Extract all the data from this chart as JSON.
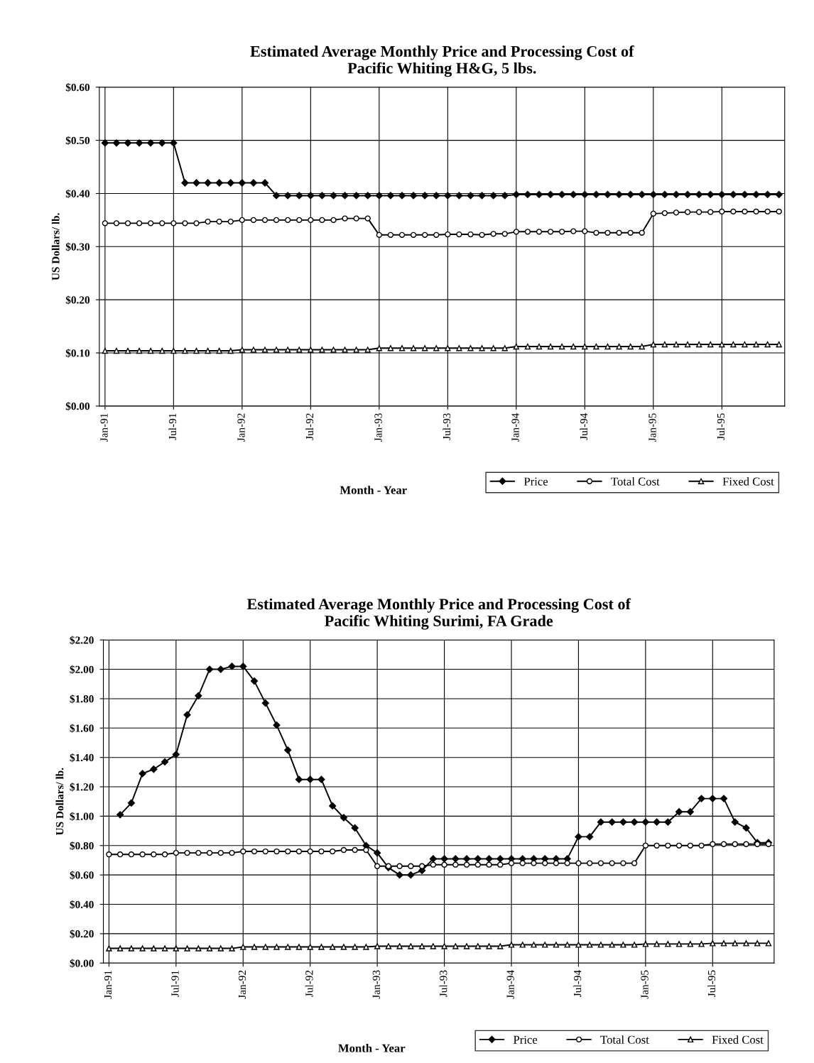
{
  "chart_data": [
    {
      "type": "line",
      "title": "Estimated Average Monthly Price and Processing Cost of\nPacific Whiting H&G, 5 lbs.",
      "xlabel": "Month - Year",
      "ylabel": "US Dollars/ lb.",
      "categories": [
        "Jan-91",
        null,
        null,
        null,
        null,
        null,
        "Jul-91",
        null,
        null,
        null,
        null,
        null,
        "Jan-92",
        null,
        null,
        null,
        null,
        null,
        "Jul-92",
        null,
        null,
        null,
        null,
        null,
        "Jan-93",
        null,
        null,
        null,
        null,
        null,
        "Jul-93",
        null,
        null,
        null,
        null,
        null,
        "Jan-94",
        null,
        null,
        null,
        null,
        null,
        "Jul-94",
        null,
        null,
        null,
        null,
        null,
        "Jan-95",
        null,
        null,
        null,
        null,
        null,
        "Jul-95",
        null,
        null,
        null,
        null,
        null
      ],
      "series": [
        {
          "name": "Price",
          "color": "#000000",
          "marker": "diamond",
          "values": [
            0.495,
            0.495,
            0.495,
            0.495,
            0.495,
            0.495,
            0.495,
            0.42,
            0.42,
            0.42,
            0.42,
            0.42,
            0.42,
            0.42,
            0.42,
            0.396,
            0.396,
            0.396,
            0.396,
            0.396,
            0.396,
            0.396,
            0.396,
            0.396,
            0.396,
            0.396,
            0.396,
            0.396,
            0.396,
            0.396,
            0.396,
            0.396,
            0.396,
            0.396,
            0.396,
            0.396,
            0.398,
            0.398,
            0.398,
            0.398,
            0.398,
            0.398,
            0.398,
            0.398,
            0.398,
            0.398,
            0.398,
            0.398,
            0.398,
            0.398,
            0.398,
            0.398,
            0.398,
            0.398,
            0.398,
            0.398,
            0.398,
            0.398,
            0.398,
            0.398
          ]
        },
        {
          "name": "Total Cost",
          "color": "#000000",
          "marker": "circle",
          "values": [
            0.344,
            0.344,
            0.344,
            0.344,
            0.344,
            0.344,
            0.344,
            0.344,
            0.344,
            0.347,
            0.347,
            0.347,
            0.35,
            0.35,
            0.35,
            0.35,
            0.35,
            0.35,
            0.35,
            0.35,
            0.35,
            0.353,
            0.353,
            0.353,
            0.322,
            0.322,
            0.322,
            0.322,
            0.322,
            0.322,
            0.323,
            0.323,
            0.323,
            0.322,
            0.324,
            0.324,
            0.328,
            0.328,
            0.328,
            0.328,
            0.328,
            0.329,
            0.329,
            0.326,
            0.326,
            0.326,
            0.326,
            0.326,
            0.362,
            0.363,
            0.364,
            0.365,
            0.365,
            0.365,
            0.366,
            0.366,
            0.366,
            0.366,
            0.366,
            0.366
          ]
        },
        {
          "name": "Fixed Cost",
          "color": "#000000",
          "marker": "triangle",
          "values": [
            0.104,
            0.104,
            0.104,
            0.104,
            0.104,
            0.104,
            0.104,
            0.104,
            0.104,
            0.104,
            0.104,
            0.104,
            0.106,
            0.106,
            0.106,
            0.106,
            0.106,
            0.106,
            0.106,
            0.106,
            0.106,
            0.106,
            0.106,
            0.106,
            0.109,
            0.109,
            0.109,
            0.109,
            0.109,
            0.109,
            0.109,
            0.109,
            0.109,
            0.109,
            0.109,
            0.109,
            0.112,
            0.112,
            0.112,
            0.112,
            0.112,
            0.112,
            0.112,
            0.112,
            0.112,
            0.112,
            0.112,
            0.112,
            0.116,
            0.116,
            0.116,
            0.116,
            0.116,
            0.116,
            0.116,
            0.116,
            0.116,
            0.116,
            0.116,
            0.116
          ]
        }
      ],
      "ylim": [
        0,
        0.6
      ],
      "yticks": [
        {
          "value": 0,
          "label": "$0.00"
        },
        {
          "value": 0.1,
          "label": "$0.10"
        },
        {
          "value": 0.2,
          "label": "$0.20"
        },
        {
          "value": 0.3,
          "label": "$0.30"
        },
        {
          "value": 0.4,
          "label": "$0.40"
        },
        {
          "value": 0.5,
          "label": "$0.50"
        },
        {
          "value": 0.6,
          "label": "$0.60"
        }
      ],
      "grid": true,
      "legend": "bottom right",
      "line_style": "solid"
    },
    {
      "type": "line",
      "title": "Estimated Average Monthly Price and Processing Cost of\nPacific Whiting Surimi, FA Grade",
      "xlabel": "Month - Year",
      "ylabel": "US Dollars/ lb.",
      "categories": [
        "Jan-91",
        null,
        null,
        null,
        null,
        null,
        "Jul-91",
        null,
        null,
        null,
        null,
        null,
        "Jan-92",
        null,
        null,
        null,
        null,
        null,
        "Jul-92",
        null,
        null,
        null,
        null,
        null,
        "Jan-93",
        null,
        null,
        null,
        null,
        null,
        "Jul-93",
        null,
        null,
        null,
        null,
        null,
        "Jan-94",
        null,
        null,
        null,
        null,
        null,
        "Jul-94",
        null,
        null,
        null,
        null,
        null,
        "Jan-95",
        null,
        null,
        null,
        null,
        null,
        "Jul-95",
        null,
        null,
        null,
        null,
        null
      ],
      "series": [
        {
          "name": "Price",
          "color": "#000000",
          "marker": "diamond",
          "values": [
            null,
            1.01,
            1.09,
            1.29,
            1.32,
            1.37,
            1.42,
            1.69,
            1.82,
            2.0,
            2.0,
            2.02,
            2.02,
            1.92,
            1.77,
            1.62,
            1.45,
            1.25,
            1.25,
            1.25,
            1.07,
            0.99,
            0.92,
            0.8,
            0.75,
            0.65,
            0.6,
            0.6,
            0.63,
            0.71,
            0.71,
            0.71,
            0.71,
            0.71,
            0.71,
            0.71,
            0.71,
            0.71,
            0.71,
            0.71,
            0.71,
            0.71,
            0.86,
            0.86,
            0.96,
            0.96,
            0.96,
            0.96,
            0.96,
            0.96,
            0.96,
            1.03,
            1.03,
            1.12,
            1.12,
            1.12,
            0.96,
            0.92,
            0.82,
            0.82
          ]
        },
        {
          "name": "Total Cost",
          "color": "#000000",
          "marker": "circle",
          "values": [
            0.74,
            0.74,
            0.74,
            0.74,
            0.74,
            0.74,
            0.75,
            0.75,
            0.75,
            0.75,
            0.75,
            0.75,
            0.76,
            0.76,
            0.76,
            0.76,
            0.76,
            0.76,
            0.76,
            0.76,
            0.76,
            0.77,
            0.77,
            0.77,
            0.66,
            0.66,
            0.66,
            0.66,
            0.66,
            0.67,
            0.67,
            0.67,
            0.67,
            0.67,
            0.67,
            0.67,
            0.68,
            0.68,
            0.68,
            0.68,
            0.68,
            0.68,
            0.68,
            0.68,
            0.68,
            0.68,
            0.68,
            0.68,
            0.8,
            0.8,
            0.8,
            0.8,
            0.8,
            0.8,
            0.81,
            0.81,
            0.81,
            0.81,
            0.81,
            0.81
          ]
        },
        {
          "name": "Fixed Cost",
          "color": "#000000",
          "marker": "triangle",
          "values": [
            0.1,
            0.1,
            0.1,
            0.1,
            0.1,
            0.1,
            0.1,
            0.1,
            0.1,
            0.1,
            0.1,
            0.1,
            0.11,
            0.11,
            0.11,
            0.11,
            0.11,
            0.11,
            0.11,
            0.11,
            0.11,
            0.11,
            0.11,
            0.11,
            0.115,
            0.115,
            0.115,
            0.115,
            0.115,
            0.115,
            0.115,
            0.115,
            0.115,
            0.115,
            0.115,
            0.115,
            0.125,
            0.125,
            0.125,
            0.125,
            0.125,
            0.125,
            0.125,
            0.125,
            0.125,
            0.125,
            0.125,
            0.125,
            0.13,
            0.13,
            0.13,
            0.13,
            0.13,
            0.13,
            0.135,
            0.135,
            0.135,
            0.135,
            0.135,
            0.135
          ]
        }
      ],
      "ylim": [
        0,
        2.2
      ],
      "yticks": [
        {
          "value": 0,
          "label": "$0.00"
        },
        {
          "value": 0.2,
          "label": "$0.20"
        },
        {
          "value": 0.4,
          "label": "$0.40"
        },
        {
          "value": 0.6,
          "label": "$0.60"
        },
        {
          "value": 0.8,
          "label": "$0.80"
        },
        {
          "value": 1.0,
          "label": "$1.00"
        },
        {
          "value": 1.2,
          "label": "$1.20"
        },
        {
          "value": 1.4,
          "label": "$1.40"
        },
        {
          "value": 1.6,
          "label": "$1.60"
        },
        {
          "value": 1.8,
          "label": "$1.80"
        },
        {
          "value": 2.0,
          "label": "$2.00"
        },
        {
          "value": 2.2,
          "label": "$2.20"
        }
      ],
      "grid": true,
      "legend": "bottom right",
      "line_style": "solid"
    }
  ]
}
